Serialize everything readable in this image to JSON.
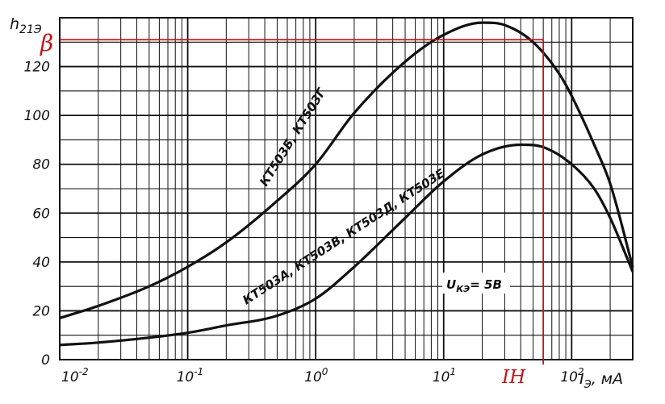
{
  "chart_data": {
    "type": "line",
    "x_scale": "log",
    "xlim": [
      0.01,
      300
    ],
    "ylim": [
      0,
      140
    ],
    "grid": true,
    "ylabel": "h",
    "ylabel_sub": "21Э",
    "xlabel": "I",
    "xlabel_sub": "Э",
    "xlabel_unit": ", мА",
    "annotation": {
      "prefix": "U",
      "sub": "КЭ",
      "value": "= 5В"
    },
    "y_ticks": [
      0,
      20,
      40,
      60,
      80,
      100,
      120
    ],
    "x_ticks": [
      {
        "value": 0.01,
        "base": "10",
        "exp": "-2"
      },
      {
        "value": 0.1,
        "base": "10",
        "exp": "-1"
      },
      {
        "value": 1,
        "base": "10",
        "exp": "0"
      },
      {
        "value": 10,
        "base": "10",
        "exp": "1"
      },
      {
        "value": 100,
        "base": "10",
        "exp": "2"
      }
    ],
    "series": [
      {
        "name": "КТ503Б, КТ503Г",
        "x": [
          0.01,
          0.02,
          0.05,
          0.1,
          0.2,
          0.5,
          1,
          2,
          5,
          10,
          20,
          30,
          50,
          80,
          100,
          150,
          200,
          300
        ],
        "y": [
          17,
          22,
          30,
          38,
          48,
          65,
          80,
          101,
          122,
          133,
          138,
          137,
          130,
          117,
          108,
          88,
          72,
          38
        ]
      },
      {
        "name": "КТ503А, КТ503В, КТ503Д, КТ503Е",
        "x": [
          0.01,
          0.02,
          0.05,
          0.1,
          0.2,
          0.5,
          1,
          2,
          5,
          10,
          20,
          40,
          60,
          100,
          150,
          200,
          300
        ],
        "y": [
          6,
          7,
          9,
          11,
          14,
          18,
          25,
          38,
          58,
          73,
          84,
          88,
          87,
          80,
          70,
          58,
          36
        ]
      }
    ],
    "beta_marker": {
      "label": "β",
      "y": 131
    },
    "in_marker": {
      "label": "IН",
      "x": 60
    }
  }
}
